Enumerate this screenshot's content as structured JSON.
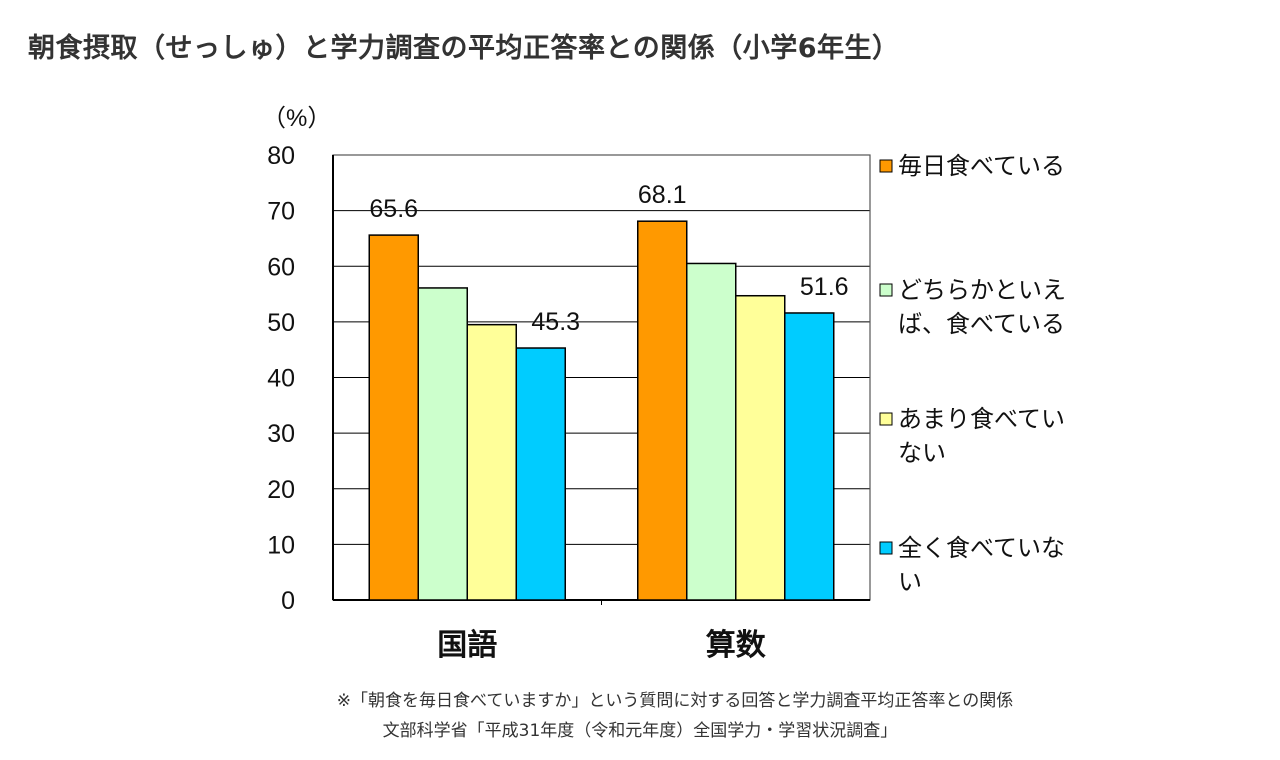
{
  "title": "朝食摂取（せっしゅ）と学力調査の平均正答率との関係（小学6年生）",
  "notes": {
    "line1": "※「朝食を毎日食べていますか」という質問に対する回答と学力調査平均正答率との関係",
    "line2": "文部科学省「平成31年度（令和元年度）全国学力・学習状況調査」"
  },
  "chart_data": {
    "type": "bar",
    "title": "",
    "ylabel": "（%）",
    "xlabel": "",
    "ylim": [
      0,
      80
    ],
    "yticks": [
      0,
      10,
      20,
      30,
      40,
      50,
      60,
      70,
      80
    ],
    "categories": [
      "国語",
      "算数"
    ],
    "series": [
      {
        "name": "毎日食べている",
        "legend_lines": [
          "毎日食べている"
        ],
        "color": "#ff9900",
        "values": [
          65.6,
          68.1
        ],
        "labels": [
          "65.6",
          "68.1"
        ]
      },
      {
        "name": "どちらかといえば、食べている",
        "legend_lines": [
          "どちらかといえ",
          "ば、食べている"
        ],
        "color": "#ccffcc",
        "values": [
          56.1,
          60.5
        ],
        "labels": [
          "",
          ""
        ]
      },
      {
        "name": "あまり食べていない",
        "legend_lines": [
          "あまり食べてい",
          "ない"
        ],
        "color": "#ffff99",
        "values": [
          49.5,
          54.7
        ],
        "labels": [
          "",
          ""
        ]
      },
      {
        "name": "全く食べていない",
        "legend_lines": [
          "全く食べていな",
          "い"
        ],
        "color": "#00ccff",
        "values": [
          45.3,
          51.6
        ],
        "labels": [
          "45.3",
          "51.6"
        ]
      }
    ],
    "legend_position": "right",
    "grid": true
  }
}
